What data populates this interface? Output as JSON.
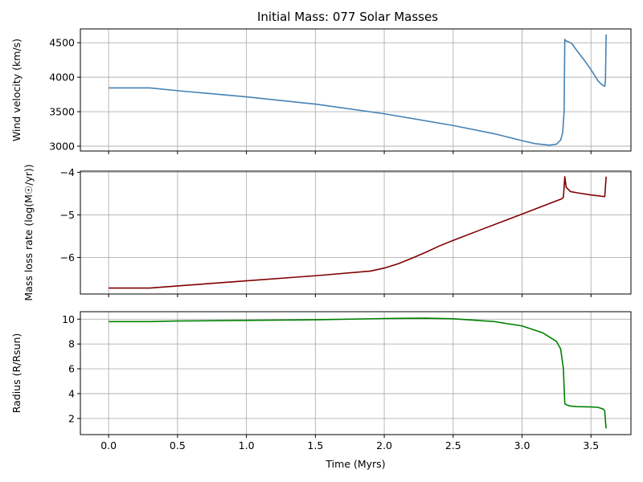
{
  "figure_title": "Initial Mass: 077 Solar Masses",
  "chart_data": [
    {
      "type": "line",
      "ylabel": "Wind velocity (km/s)",
      "xlim": [
        -0.205,
        3.79
      ],
      "ylim": [
        2930,
        4700
      ],
      "xticks": [
        0.0,
        0.5,
        1.0,
        1.5,
        2.0,
        2.5,
        3.0,
        3.5
      ],
      "yticks": [
        3000,
        3500,
        4000,
        4500
      ],
      "ytick_labels": [
        "3000",
        "3500",
        "4000",
        "4500"
      ],
      "show_x_tick_labels": false,
      "grid": true,
      "color": "#4682b4",
      "series": [
        {
          "x": [
            0.0,
            0.3,
            0.5,
            1.0,
            1.5,
            2.0,
            2.5,
            2.8,
            3.0,
            3.1,
            3.2,
            3.25,
            3.28,
            3.295,
            3.305,
            3.31,
            3.315,
            3.33,
            3.36,
            3.4,
            3.45,
            3.5,
            3.55,
            3.58,
            3.6,
            3.605,
            3.61
          ],
          "y": [
            3845,
            3845,
            3805,
            3715,
            3610,
            3470,
            3300,
            3180,
            3080,
            3035,
            3015,
            3030,
            3090,
            3200,
            3500,
            4550,
            4530,
            4520,
            4490,
            4380,
            4250,
            4110,
            3950,
            3890,
            3870,
            3950,
            4620
          ]
        }
      ]
    },
    {
      "type": "line",
      "ylabel": "Mass loss rate (log(M☉/yr))",
      "xlim": [
        -0.205,
        3.79
      ],
      "ylim": [
        -6.86,
        -3.97
      ],
      "xticks": [
        0.0,
        0.5,
        1.0,
        1.5,
        2.0,
        2.5,
        3.0,
        3.5
      ],
      "yticks": [
        -6,
        -5,
        -4
      ],
      "ytick_labels": [
        "−6",
        "−5",
        "−4"
      ],
      "show_x_tick_labels": false,
      "grid": true,
      "color": "#800000",
      "series": [
        {
          "x": [
            0.0,
            0.3,
            0.5,
            1.0,
            1.5,
            1.9,
            2.0,
            2.1,
            2.2,
            2.3,
            2.4,
            2.5,
            2.7,
            3.0,
            3.2,
            3.29,
            3.3,
            3.31,
            3.32,
            3.35,
            3.4,
            3.5,
            3.6,
            3.61
          ],
          "y": [
            -6.72,
            -6.72,
            -6.67,
            -6.55,
            -6.43,
            -6.32,
            -6.25,
            -6.15,
            -6.02,
            -5.88,
            -5.73,
            -5.6,
            -5.35,
            -4.98,
            -4.73,
            -4.62,
            -4.58,
            -4.1,
            -4.35,
            -4.45,
            -4.48,
            -4.53,
            -4.57,
            -4.1
          ]
        }
      ]
    },
    {
      "type": "line",
      "ylabel": "Radius (R/Rsun)",
      "xlabel": "Time (Myrs)",
      "xlim": [
        -0.205,
        3.79
      ],
      "ylim": [
        0.7,
        10.6
      ],
      "xticks": [
        0.0,
        0.5,
        1.0,
        1.5,
        2.0,
        2.5,
        3.0,
        3.5
      ],
      "xtick_labels": [
        "0.0",
        "0.5",
        "1.0",
        "1.5",
        "2.0",
        "2.5",
        "3.0",
        "3.5"
      ],
      "yticks": [
        2,
        4,
        6,
        8,
        10
      ],
      "ytick_labels": [
        "2",
        "4",
        "6",
        "8",
        "10"
      ],
      "show_x_tick_labels": true,
      "grid": true,
      "color": "#008000",
      "series": [
        {
          "x": [
            0.0,
            0.3,
            0.5,
            1.0,
            1.5,
            2.0,
            2.3,
            2.5,
            2.8,
            3.0,
            3.15,
            3.25,
            3.28,
            3.3,
            3.305,
            3.31,
            3.32,
            3.35,
            3.4,
            3.5,
            3.55,
            3.59,
            3.6,
            3.605,
            3.61
          ],
          "y": [
            9.8,
            9.8,
            9.85,
            9.9,
            9.95,
            10.05,
            10.08,
            10.03,
            9.8,
            9.45,
            8.9,
            8.2,
            7.6,
            6.0,
            4.5,
            3.2,
            3.1,
            3.0,
            2.95,
            2.93,
            2.9,
            2.75,
            2.6,
            1.8,
            1.2
          ]
        }
      ]
    }
  ]
}
